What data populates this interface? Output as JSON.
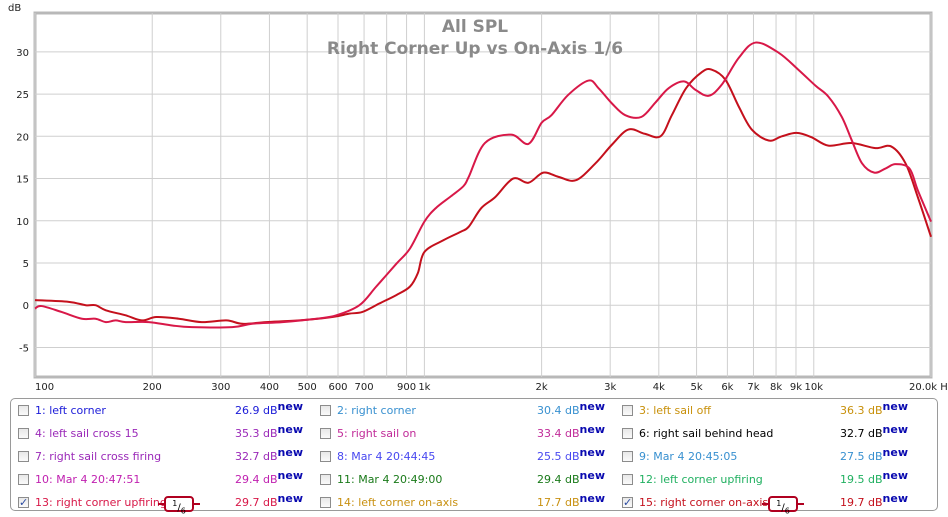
{
  "chart_data": {
    "type": "line",
    "title": "All SPL",
    "subtitle": "Right Corner Up vs On-Axis 1/6",
    "ylabel": "dB",
    "xlabel": "Hz",
    "xscale": "log",
    "xlim": [
      100,
      20000
    ],
    "ylim": [
      -8.5,
      34.6
    ],
    "grid": true,
    "yticks": [
      -5,
      0,
      5,
      10,
      15,
      20,
      25,
      30
    ],
    "xgrid": [
      100,
      200,
      300,
      400,
      500,
      600,
      700,
      800,
      900,
      1000,
      2000,
      3000,
      4000,
      5000,
      6000,
      7000,
      8000,
      9000,
      10000,
      20000
    ],
    "xticks": [
      {
        "value": 100,
        "label": "100"
      },
      {
        "value": 200,
        "label": "200"
      },
      {
        "value": 300,
        "label": "300"
      },
      {
        "value": 400,
        "label": "400"
      },
      {
        "value": 500,
        "label": "500"
      },
      {
        "value": 600,
        "label": "600"
      },
      {
        "value": 700,
        "label": "700"
      },
      {
        "value": 900,
        "label": "900"
      },
      {
        "value": 1000,
        "label": "1k"
      },
      {
        "value": 2000,
        "label": "2k"
      },
      {
        "value": 3000,
        "label": "3k"
      },
      {
        "value": 4000,
        "label": "4k"
      },
      {
        "value": 5000,
        "label": "5k"
      },
      {
        "value": 6000,
        "label": "6k"
      },
      {
        "value": 7000,
        "label": "7k"
      },
      {
        "value": 8000,
        "label": "8k"
      },
      {
        "value": 9000,
        "label": "9k"
      },
      {
        "value": 10000,
        "label": "10k"
      },
      {
        "value": 20000,
        "label": "20.0k Hz"
      }
    ],
    "series": [
      {
        "name": "15: right corner on-axis",
        "color": "#c4101c",
        "x": [
          100,
          122,
          135,
          143,
          152,
          171,
          188,
          205,
          234,
          268,
          310,
          341,
          392,
          477,
          580,
          641,
          693,
          766,
          847,
          918,
          962,
          1000,
          1120,
          1240,
          1300,
          1400,
          1520,
          1690,
          1850,
          2020,
          2210,
          2450,
          2750,
          3030,
          3340,
          3680,
          4040,
          4320,
          4700,
          5160,
          5460,
          5930,
          6420,
          6930,
          7660,
          8280,
          9030,
          9860,
          10900,
          12500,
          14400,
          15800,
          17200,
          18500,
          20000
        ],
        "y": [
          0.6,
          0.4,
          0,
          0,
          -0.6,
          -1.2,
          -1.8,
          -1.4,
          -1.6,
          -2.0,
          -1.8,
          -2.2,
          -2.0,
          -1.8,
          -1.4,
          -1.0,
          -0.8,
          0.2,
          1.2,
          2.2,
          3.8,
          6.3,
          7.7,
          8.7,
          9.3,
          11.5,
          12.8,
          15.0,
          14.5,
          15.7,
          15.2,
          14.8,
          16.8,
          19.0,
          20.8,
          20.3,
          20.0,
          22.5,
          25.7,
          27.6,
          27.9,
          26.7,
          23.5,
          20.8,
          19.5,
          20.0,
          20.4,
          19.9,
          18.9,
          19.2,
          18.6,
          18.8,
          16.8,
          12.8,
          8.1
        ]
      },
      {
        "name": "13: right corner upfiring",
        "color": "#d81848",
        "x": [
          100,
          104,
          117,
          132,
          143,
          152,
          161,
          171,
          196,
          225,
          253,
          321,
          361,
          432,
          528,
          594,
          681,
          752,
          847,
          918,
          1000,
          1070,
          1170,
          1260,
          1300,
          1430,
          1670,
          1850,
          2000,
          2120,
          2340,
          2640,
          2800,
          3030,
          3280,
          3610,
          3920,
          4240,
          4640,
          4970,
          5370,
          5800,
          6420,
          7090,
          8120,
          9120,
          10100,
          10900,
          11800,
          12500,
          13300,
          14300,
          15300,
          16200,
          17600,
          18500,
          20000
        ],
        "y": [
          -0.4,
          -0.1,
          -0.8,
          -1.6,
          -1.6,
          -2.0,
          -1.8,
          -2.0,
          -2.0,
          -2.4,
          -2.6,
          -2.6,
          -2.2,
          -2.0,
          -1.6,
          -1.2,
          0,
          2.2,
          4.9,
          6.7,
          9.9,
          11.5,
          12.9,
          14.1,
          15.2,
          19.2,
          20.2,
          19.1,
          21.6,
          22.5,
          24.9,
          26.6,
          25.7,
          23.9,
          22.5,
          22.3,
          24.0,
          25.7,
          26.5,
          25.5,
          24.8,
          26.1,
          29.3,
          31.1,
          29.9,
          27.9,
          26.0,
          24.7,
          22.3,
          19.6,
          16.8,
          15.7,
          16.2,
          16.7,
          16.2,
          13.6,
          9.9
        ]
      }
    ]
  },
  "legend": {
    "new_label": "new",
    "smoothing_label": "1/6",
    "items": [
      {
        "label": "1: left corner",
        "value": "26.9 dB",
        "color": "#1a1ad8",
        "checked": false
      },
      {
        "label": "2: right corner",
        "value": "30.4 dB",
        "color": "#3890d0",
        "checked": false
      },
      {
        "label": "3: left sail off",
        "value": "36.3 dB",
        "color": "#c8900a",
        "checked": false
      },
      {
        "label": "4: left sail cross 15",
        "value": "35.3 dB",
        "color": "#9a28b8",
        "checked": false
      },
      {
        "label": "5: right sail on",
        "value": "33.4 dB",
        "color": "#c02a98",
        "checked": false
      },
      {
        "label": "6: right sail behind head",
        "value": "32.7 dB",
        "color": "#000000",
        "checked": false
      },
      {
        "label": "7: right sail cross firing",
        "value": "32.7 dB",
        "color": "#9a28b8",
        "checked": false
      },
      {
        "label": "8: Mar 4 20:44:45",
        "value": "25.5 dB",
        "color": "#4848f0",
        "checked": false
      },
      {
        "label": "9: Mar 4 20:45:05",
        "value": "27.5 dB",
        "color": "#3890d0",
        "checked": false
      },
      {
        "label": "10: Mar 4 20:47:51",
        "value": "29.4 dB",
        "color": "#c020b0",
        "checked": false
      },
      {
        "label": "11: Mar 4 20:49:00",
        "value": "29.4 dB",
        "color": "#1a7a1a",
        "checked": false
      },
      {
        "label": "12: left corner upfiring",
        "value": "19.5 dB",
        "color": "#20b060",
        "checked": false
      },
      {
        "label": "13: right corner upfiring",
        "value": "29.7 dB",
        "color": "#d81848",
        "checked": true
      },
      {
        "label": "14: left corner on-axis",
        "value": "17.7 dB",
        "color": "#c89010",
        "checked": false
      },
      {
        "label": "15: right corner on-axis",
        "value": "19.7 dB",
        "color": "#c4101c",
        "checked": true
      }
    ]
  }
}
